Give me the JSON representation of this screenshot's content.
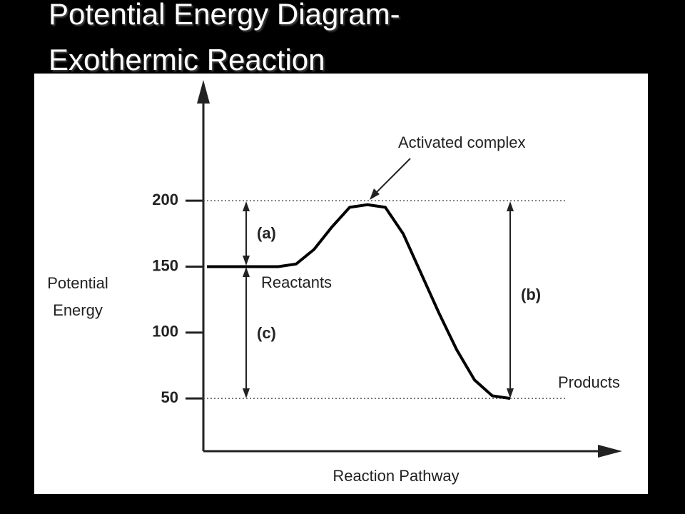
{
  "chart_data": {
    "type": "line",
    "title": "Potential Energy Diagram- Exothermic Reaction",
    "y_label": "Potential Energy",
    "x_label": "Reaction Pathway",
    "categories": [
      null,
      null,
      null,
      null,
      null,
      null,
      null,
      null,
      null,
      null,
      null,
      null,
      null,
      null,
      null,
      null,
      null,
      null
    ],
    "series": [
      {
        "values": [
          150,
          150,
          150,
          150,
          150,
          152,
          163,
          180,
          195,
          197,
          195,
          175,
          145,
          115,
          87,
          64,
          52,
          50
        ],
        "color": "#000000"
      }
    ],
    "ylim": [
      10,
      290
    ],
    "yticks": [
      50,
      100,
      150,
      200
    ],
    "dotted_levels": [
      200,
      50
    ],
    "annotations": [
      "Activated complex",
      "Reactants",
      "Products",
      "(a)",
      "(b)",
      "(c)"
    ]
  }
}
